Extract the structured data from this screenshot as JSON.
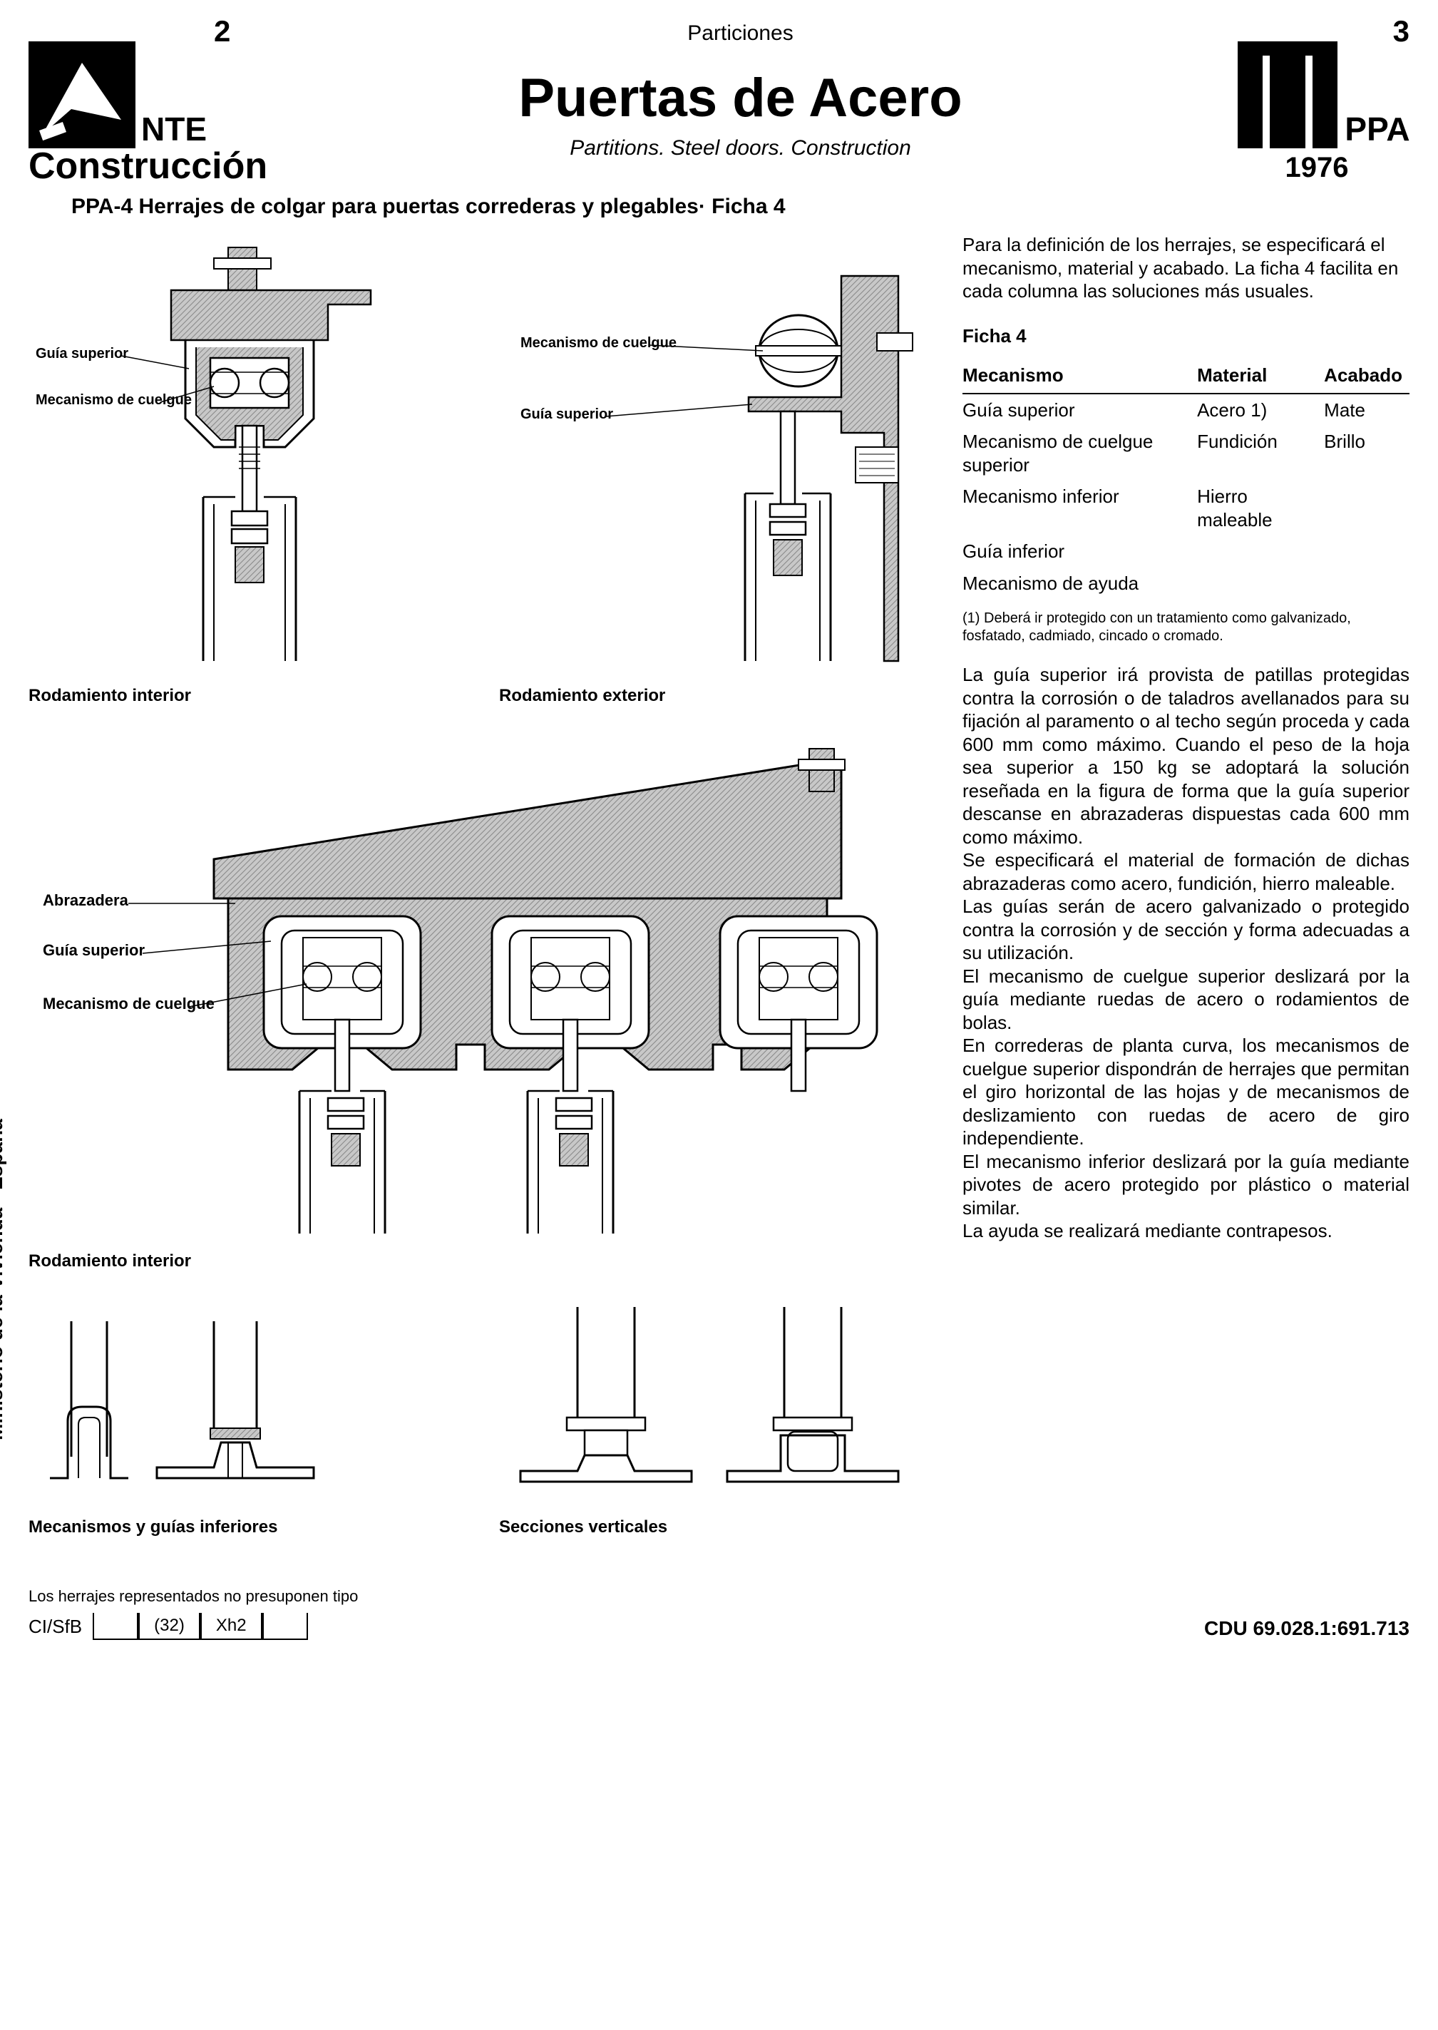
{
  "header": {
    "page_left": "2",
    "page_right": "3",
    "nte": "NTE",
    "construccion": "Construcción",
    "particiones": "Particiones",
    "main_title": "Puertas de Acero",
    "subtitle": "Partitions. Steel doors. Construction",
    "ppa": "PPA",
    "year": "1976"
  },
  "subheading": "PPA-4 Herrajes de colgar para puertas correderas y plegables· Ficha 4",
  "diagrams": {
    "d1": {
      "label_guia": "Guía superior",
      "label_mec": "Mecanismo de cuelgue",
      "caption": "Rodamiento interior"
    },
    "d2": {
      "label_mec": "Mecanismo de cuelgue",
      "label_guia": "Guía superior",
      "caption": "Rodamiento exterior"
    },
    "d3": {
      "label_abr": "Abrazadera",
      "label_guia": "Guía superior",
      "label_mec": "Mecanismo de cuelgue",
      "caption": "Rodamiento interior"
    },
    "d4": {
      "caption": "Mecanismos y guías inferiores"
    },
    "d5": {
      "caption": "Secciones verticales"
    }
  },
  "right": {
    "intro": "Para la definición de los herrajes, se especificará el mecanismo, material y acabado. La ficha 4 facilita en cada columna las soluciones más usuales.",
    "ficha": "Ficha 4",
    "table": {
      "headers": [
        "Mecanismo",
        "Material",
        "Acabado"
      ],
      "rows": [
        [
          "Guía superior",
          "Acero 1)",
          "Mate"
        ],
        [
          "Mecanismo de cuelgue superior",
          "Fundición",
          "Brillo"
        ],
        [
          "Mecanismo inferior",
          "Hierro maleable",
          ""
        ],
        [
          "Guía inferior",
          "",
          ""
        ],
        [
          "Mecanismo de ayuda",
          "",
          ""
        ]
      ]
    },
    "footnote": "(1) Deberá ir protegido con un tratamiento como galvanizado, fosfatado, cadmiado, cincado o cromado.",
    "body": "La guía superior irá provista de patillas protegidas contra la corrosión o de taladros avellanados para su fijación al paramento o al techo según proceda y cada 600 mm como máximo. Cuando el peso de la hoja sea superior a 150 kg se adoptará la solución reseñada en la figura de forma que la guía superior descanse en abrazaderas dispuestas cada 600 mm como máximo.\nSe especificará el material de formación de dichas abrazaderas como acero, fundición, hierro maleable.\nLas guías serán de acero galvanizado o protegido contra la corrosión y de sección y forma adecuadas a su utilización.\nEl mecanismo de cuelgue superior deslizará por la guía mediante ruedas de acero o rodamientos de bolas.\nEn correderas de planta curva, los mecanismos de cuelgue superior dispondrán de herrajes que permitan el giro horizontal de las hojas y de mecanismos de deslizamiento con ruedas de acero de giro independiente.\nEl mecanismo inferior deslizará por la guía mediante pivotes de acero protegido por plástico o material similar.\nLa ayuda se realizará mediante contrapesos."
  },
  "vertical": "Ministerio de la Vivienda - España",
  "footer": {
    "note": "Los herrajes representados no presuponen tipo",
    "class_label": "CI/SfB",
    "class_boxes": [
      "",
      "(32)",
      "Xh2",
      ""
    ],
    "cdu": "CDU 69.028.1:691.713"
  },
  "colors": {
    "hatch": "#b8b8b8",
    "line": "#000000",
    "bg": "#ffffff"
  }
}
